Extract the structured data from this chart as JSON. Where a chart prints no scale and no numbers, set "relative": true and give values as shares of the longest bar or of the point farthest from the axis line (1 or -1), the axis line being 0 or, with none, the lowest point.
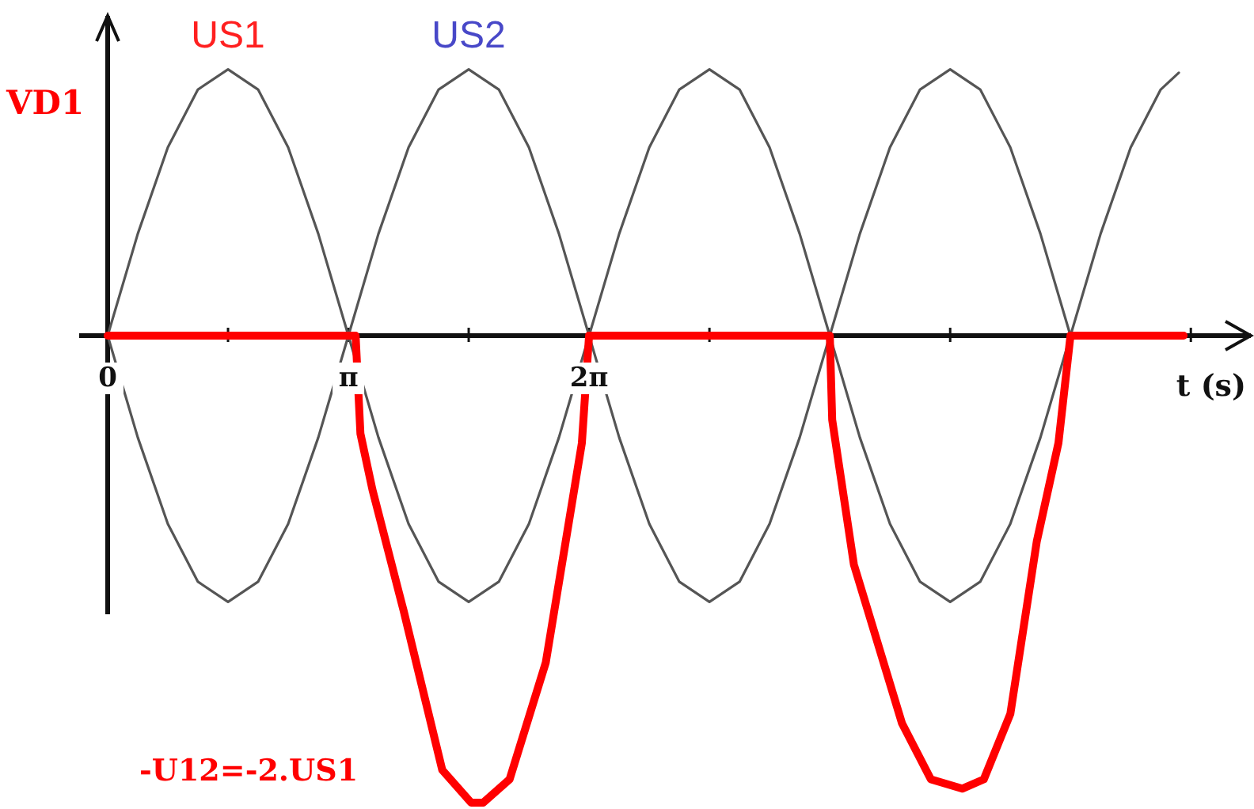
{
  "chart_data": {
    "type": "line",
    "relative": true,
    "xlabel": "t (s)",
    "ylabel": "VD1",
    "annotations": [
      {
        "text": "US1",
        "x": 1.571,
        "y": 0.57
      },
      {
        "text": "US2",
        "x": 4.712,
        "y": 0.57
      },
      "-U12=-2.US1"
    ],
    "xlim": [
      0,
      14.92
    ],
    "xticks": [
      0,
      {
        "value": 1.571,
        "label": null
      },
      {
        "value": 3.142,
        "label": "π"
      },
      {
        "value": 4.712,
        "label": null
      },
      {
        "value": 6.283,
        "label": "2π"
      },
      {
        "value": 7.854,
        "label": null
      },
      {
        "value": 10.996,
        "label": null
      },
      {
        "value": 14.137,
        "label": null
      }
    ],
    "series": [
      {
        "color": "#555555",
        "x": [
          0,
          0.393,
          0.785,
          1.178,
          1.571,
          1.963,
          2.356,
          2.749,
          3.142,
          3.534,
          3.927,
          4.32,
          4.712,
          5.105,
          5.498,
          5.89,
          6.283,
          6.676,
          7.069,
          7.461,
          7.854,
          8.247,
          8.639,
          9.032,
          9.425,
          9.817,
          10.21,
          10.603,
          10.996,
          11.388,
          11.781,
          12.174,
          12.566,
          12.959,
          13.352,
          13.744,
          13.98
        ],
        "values": [
          0,
          0.218,
          0.403,
          0.527,
          0.57,
          0.527,
          0.403,
          0.218,
          0,
          -0.218,
          -0.403,
          -0.527,
          -0.57,
          -0.527,
          -0.403,
          -0.218,
          0,
          0.218,
          0.403,
          0.527,
          0.57,
          0.527,
          0.403,
          0.218,
          0,
          -0.218,
          -0.403,
          -0.527,
          -0.57,
          -0.527,
          -0.403,
          -0.218,
          0,
          0.218,
          0.403,
          0.527,
          0.563
        ]
      },
      {
        "color": "#555555",
        "x": [
          0,
          0.393,
          0.785,
          1.178,
          1.571,
          1.963,
          2.356,
          2.749,
          3.142,
          3.534,
          3.927,
          4.32,
          4.712,
          5.105,
          5.498,
          5.89,
          6.283,
          6.676,
          7.069,
          7.461,
          7.854,
          8.247,
          8.639,
          9.032,
          9.425,
          9.817,
          10.21,
          10.603,
          10.996,
          11.388,
          11.781,
          12.174,
          12.566
        ],
        "values": [
          0,
          -0.218,
          -0.403,
          -0.527,
          -0.57,
          -0.527,
          -0.403,
          -0.218,
          0,
          0.218,
          0.403,
          0.527,
          0.57,
          0.527,
          0.403,
          0.218,
          0,
          -0.218,
          -0.403,
          -0.527,
          -0.57,
          -0.527,
          -0.403,
          -0.218,
          0,
          0.218,
          0.403,
          0.527,
          0.57,
          0.527,
          0.403,
          0.218,
          0
        ]
      },
      {
        "color": "#ff0000",
        "x": [
          0,
          3.236,
          3.299,
          3.456,
          3.864,
          4.367,
          4.744,
          4.901,
          5.246,
          5.718,
          6.189,
          6.283,
          9.425,
          9.456,
          9.739,
          10.367,
          10.744,
          11.153,
          11.435,
          11.781,
          12.127,
          12.409,
          12.566,
          14.043
        ],
        "values": [
          0,
          0,
          -0.21,
          -0.33,
          -0.59,
          -0.93,
          -1,
          -1,
          -0.95,
          -0.7,
          -0.23,
          0,
          0,
          -0.18,
          -0.49,
          -0.83,
          -0.95,
          -0.97,
          -0.95,
          -0.81,
          -0.44,
          -0.23,
          0,
          0
        ]
      }
    ]
  }
}
